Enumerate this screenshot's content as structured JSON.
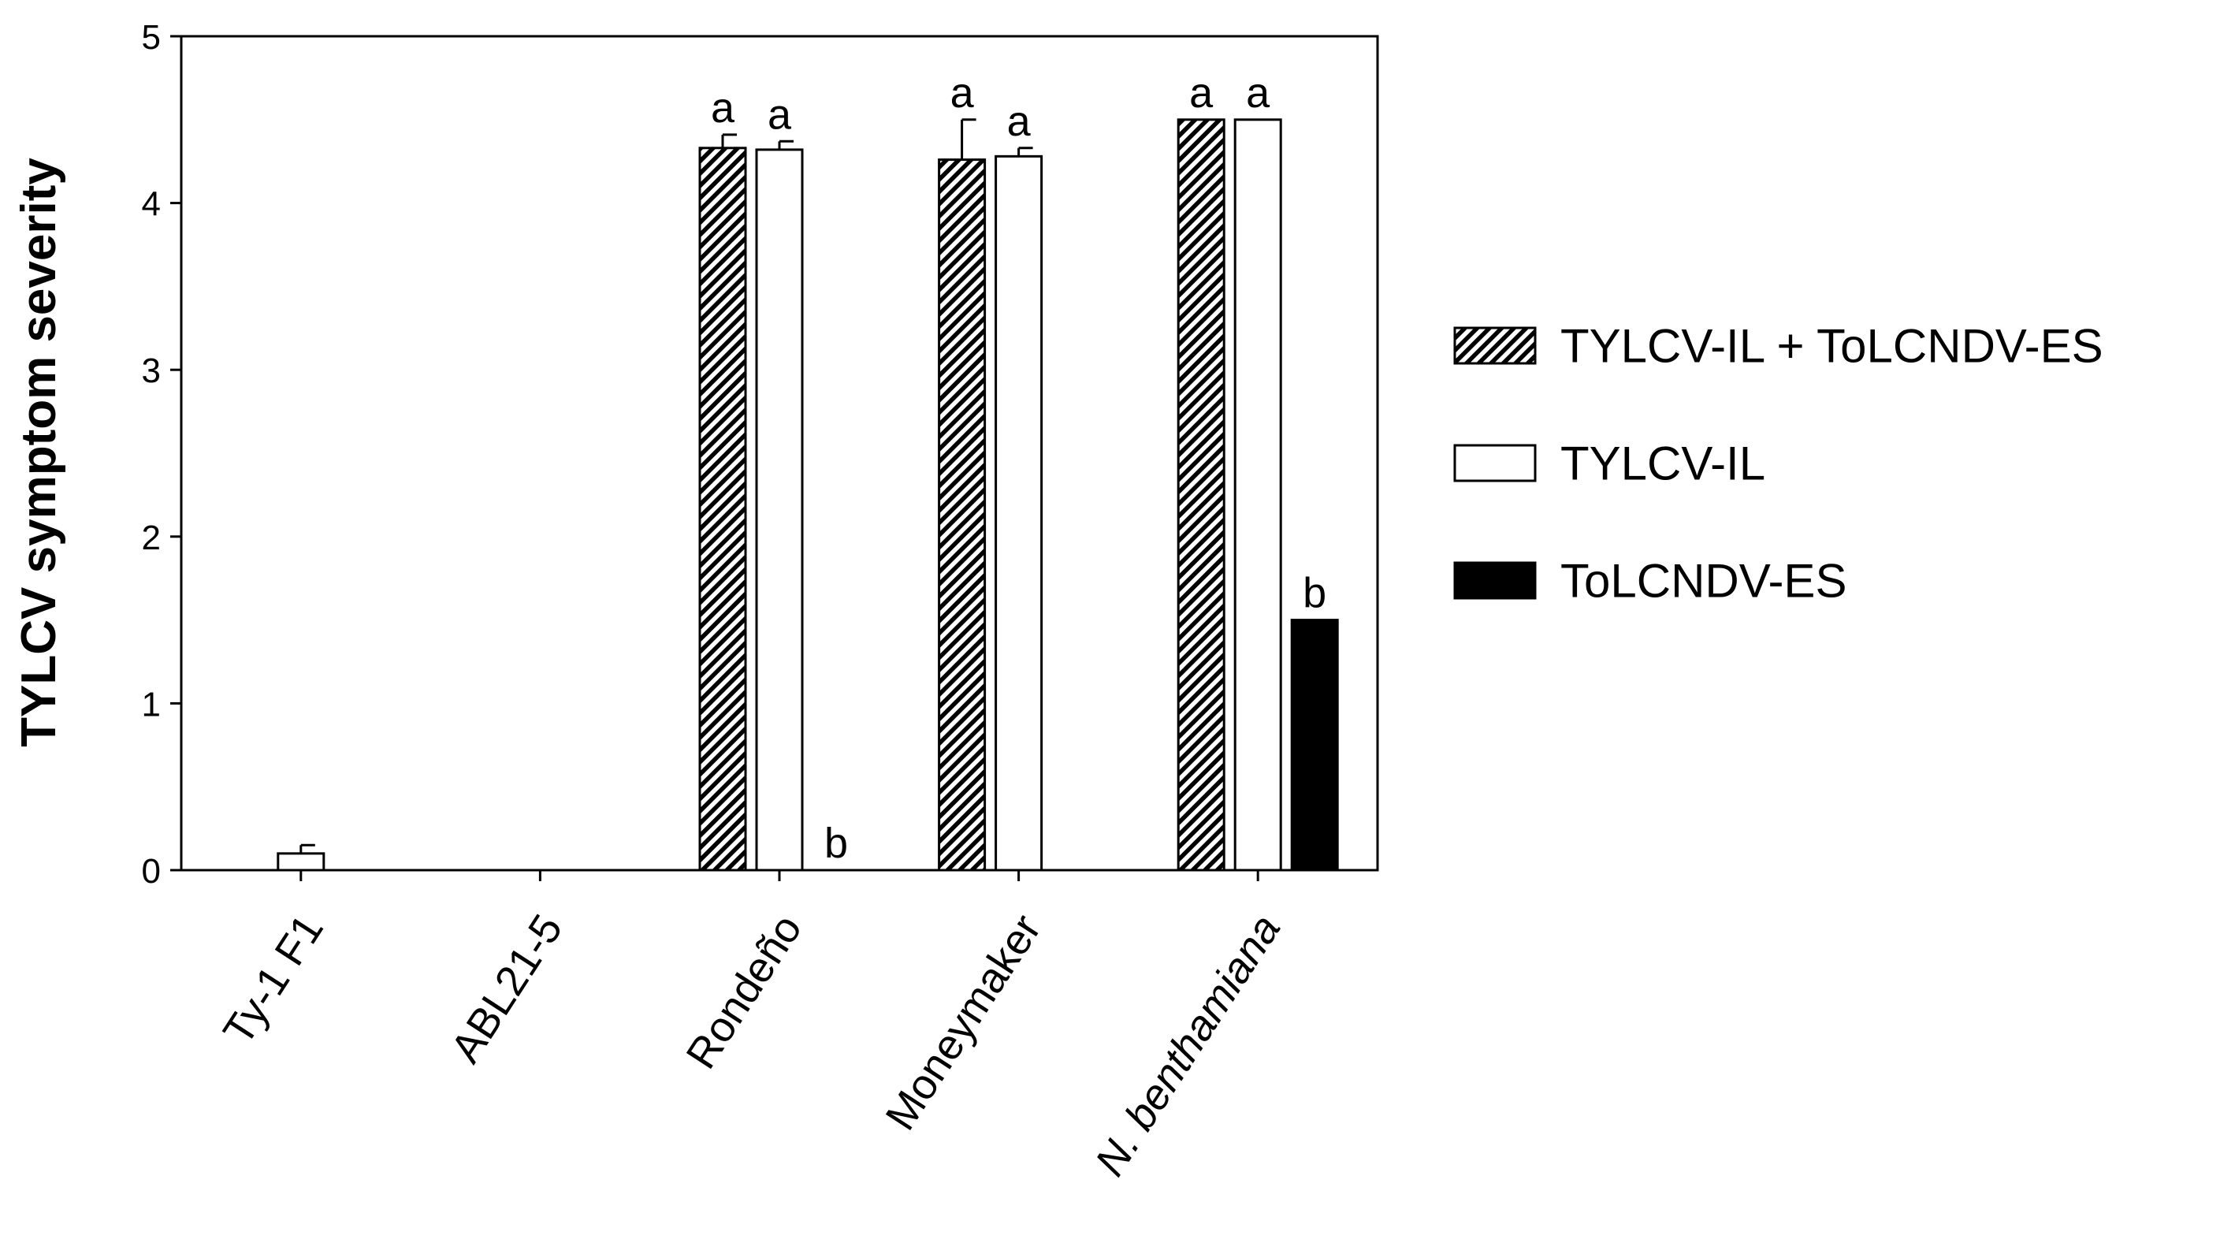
{
  "chart_data": {
    "type": "bar",
    "title": "",
    "xlabel": "",
    "ylabel": "TYLCV symptom severity",
    "ylim": [
      0,
      5
    ],
    "yticks": [
      0,
      1,
      2,
      3,
      4,
      5
    ],
    "categories": [
      "Ty-1 F1",
      "ABL21-5",
      "Rondeño",
      "Moneymaker",
      "N. benthamiana"
    ],
    "italic_categories": [
      false,
      false,
      false,
      false,
      true
    ],
    "legend_position": "right",
    "series": [
      {
        "name": "TYLCV-IL + ToLCNDV-ES",
        "style": "hatched",
        "color": "#000000",
        "values": [
          0,
          0,
          4.33,
          4.26,
          4.5
        ],
        "errors": [
          0,
          0,
          0.08,
          0.24,
          0
        ],
        "letters": [
          "",
          "",
          "a",
          "a",
          "a"
        ]
      },
      {
        "name": "TYLCV-IL",
        "style": "white",
        "color": "#ffffff",
        "values": [
          0.1,
          0,
          4.32,
          4.28,
          4.5
        ],
        "errors": [
          0.05,
          0,
          0.05,
          0.05,
          0
        ],
        "letters": [
          "",
          "",
          "a",
          "a",
          "a"
        ]
      },
      {
        "name": "ToLCNDV-ES",
        "style": "solid",
        "color": "#000000",
        "values": [
          0,
          0,
          0,
          0,
          1.5
        ],
        "errors": [
          0,
          0,
          0,
          0,
          0
        ],
        "letters": [
          "",
          "",
          "b",
          "",
          "b"
        ]
      }
    ]
  }
}
